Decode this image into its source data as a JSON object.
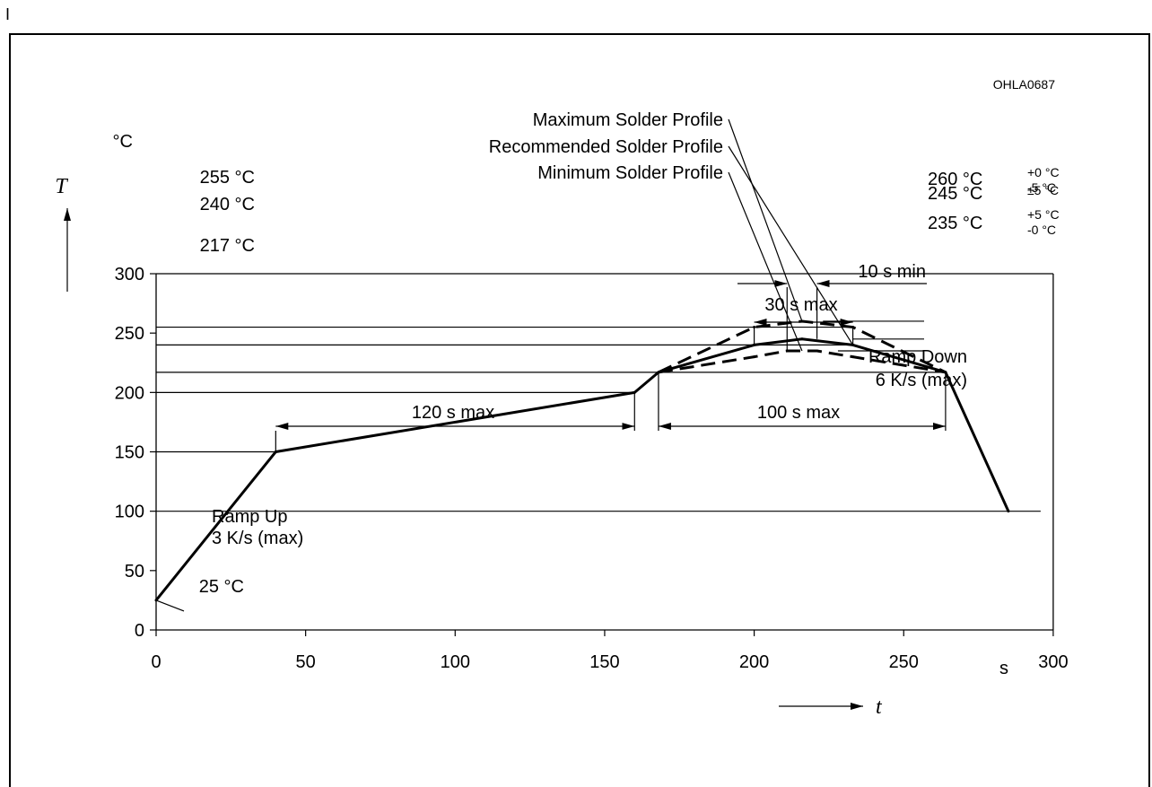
{
  "page": {
    "stray_mark": "I"
  },
  "chart_data": {
    "type": "line",
    "code": "OHLA0687",
    "xlabel": "t",
    "ylabel": "T",
    "x_unit": "s",
    "y_unit": "°C",
    "xlim": [
      0,
      300
    ],
    "ylim": [
      0,
      300
    ],
    "x_ticks": [
      0,
      50,
      100,
      150,
      200,
      250,
      300
    ],
    "y_ticks": [
      0,
      50,
      100,
      150,
      200,
      250,
      300
    ],
    "series": [
      {
        "name": "Recommended Solder Profile",
        "style": "solid",
        "points": [
          [
            0,
            25
          ],
          [
            40,
            150
          ],
          [
            160,
            200
          ],
          [
            168,
            217
          ],
          [
            200,
            240
          ],
          [
            216,
            245
          ],
          [
            233,
            240
          ],
          [
            264,
            217
          ],
          [
            285,
            100
          ]
        ]
      },
      {
        "name": "Maximum Solder Profile",
        "style": "dashed",
        "points": [
          [
            168,
            217
          ],
          [
            200,
            255
          ],
          [
            216,
            260
          ],
          [
            233,
            255
          ],
          [
            264,
            217
          ]
        ]
      },
      {
        "name": "Minimum Solder Profile",
        "style": "dashed",
        "points": [
          [
            168,
            217
          ],
          [
            200,
            230
          ],
          [
            211,
            235
          ],
          [
            221,
            235
          ],
          [
            233,
            230
          ],
          [
            264,
            217
          ]
        ]
      }
    ],
    "reference_labels": [
      {
        "text": "255 °C",
        "y": 255
      },
      {
        "text": "240 °C",
        "y": 240
      },
      {
        "text": "217 °C",
        "y": 217
      },
      {
        "text": "25 °C",
        "y": 25
      }
    ],
    "peak_labels": [
      {
        "main": "260 °C",
        "tol_top": "+0 °C",
        "tol_bottom": "-5 °C",
        "y": 260
      },
      {
        "main": "245 °C",
        "tol": "±5 °C",
        "y": 245
      },
      {
        "main": "235 °C",
        "tol_top": "+5 °C",
        "tol_bottom": "-0 °C",
        "y": 235
      }
    ],
    "intervals": [
      {
        "label": "120 s max",
        "from": 40,
        "to": 160
      },
      {
        "label": "100 s max",
        "from": 168,
        "to": 264
      },
      {
        "label": "30 s max",
        "from": 200,
        "to": 233
      },
      {
        "label": "10 s min",
        "from": 211,
        "to": 221
      }
    ],
    "annotations": {
      "ramp_up": [
        "Ramp Up",
        "3 K/s (max)"
      ],
      "ramp_down": [
        "Ramp Down",
        "6 K/s (max)"
      ],
      "profiles": [
        "Maximum Solder Profile",
        "Recommended Solder Profile",
        "Minimum Solder Profile"
      ]
    },
    "grid": false,
    "colors": {
      "ink": "#000000",
      "background": "#ffffff"
    }
  }
}
